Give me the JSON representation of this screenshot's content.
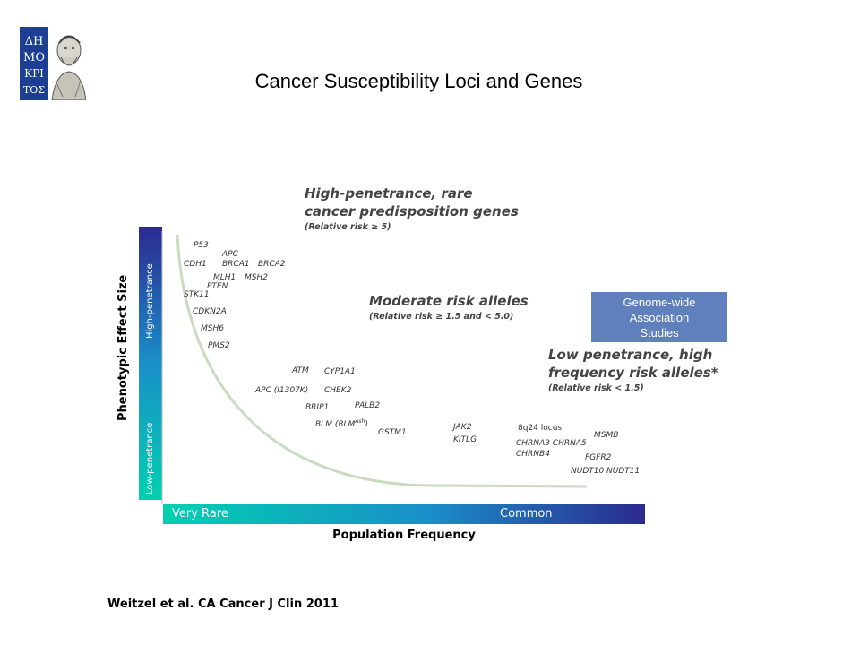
{
  "title": "Cancer Susceptibility Loci and Genes",
  "citation": "Weitzel et al. CA Cancer J  Clin 2011",
  "logo": {
    "text_lines": [
      "ΔΗ",
      "ΜΟ",
      "ΚΡΙ",
      "ΤΟΣ"
    ]
  },
  "axes": {
    "y_title": "Phenotypic Effect Size",
    "x_title": "Population Frequency",
    "y_high": "High-penetrance",
    "y_low": "Low-penetrance",
    "x_left": "Very Rare",
    "x_right": "Common"
  },
  "categories": {
    "high": {
      "label": "High-penetrance,  rare cancer predisposition genes",
      "line1": "High-penetrance,  rare",
      "line2": "cancer predisposition genes",
      "sub": "(Relative risk ≥ 5)"
    },
    "moderate": {
      "line1": "Moderate risk alleles",
      "sub": "(Relative risk  ≥  1.5 and < 5.0)"
    },
    "low": {
      "line1": "Low penetrance, high",
      "line2": "frequency risk alleles*",
      "sub": "(Relative risk < 1.5)"
    }
  },
  "gwas": {
    "text": "Genome-wide\nAssociation\nStudies"
  },
  "genes": {
    "p53": "P53",
    "apc": "APC",
    "cdh1": "CDH1",
    "brca1": "BRCA1",
    "brca2": "BRCA2",
    "mlh1": "MLH1",
    "msh2": "MSH2",
    "pten": "PTEN",
    "stk11": "STK11",
    "cdkn2a": "CDKN2A",
    "msh6": "MSH6",
    "pms2": "PMS2",
    "atm": "ATM",
    "cyp1a1": "CYP1A1",
    "apc_i1307k": "APC (I1307K)",
    "chek2": "CHEK2",
    "brip1": "BRIP1",
    "palb2": "PALB2",
    "blm": "BLM (BLM",
    "blm_sup": "Ash",
    "blm_close": ")",
    "gstm1": "GSTM1",
    "jak2": "JAK2",
    "kitlg": "KITLG",
    "locus_8q24": "8q24 locus",
    "chrna3": "CHRNA3 CHRNA5",
    "chrnb4": "CHRNB4",
    "msmb": "MSMB",
    "fgfr2": "FGFR2",
    "nudt": "NUDT10 NUDT11"
  },
  "colors": {
    "curve": "#c9dcc0",
    "gradient_start": "#00d0b0",
    "gradient_mid": "#1a8fc8",
    "gradient_end": "#2c2a90",
    "gwas_box": "#5f7fbd"
  }
}
